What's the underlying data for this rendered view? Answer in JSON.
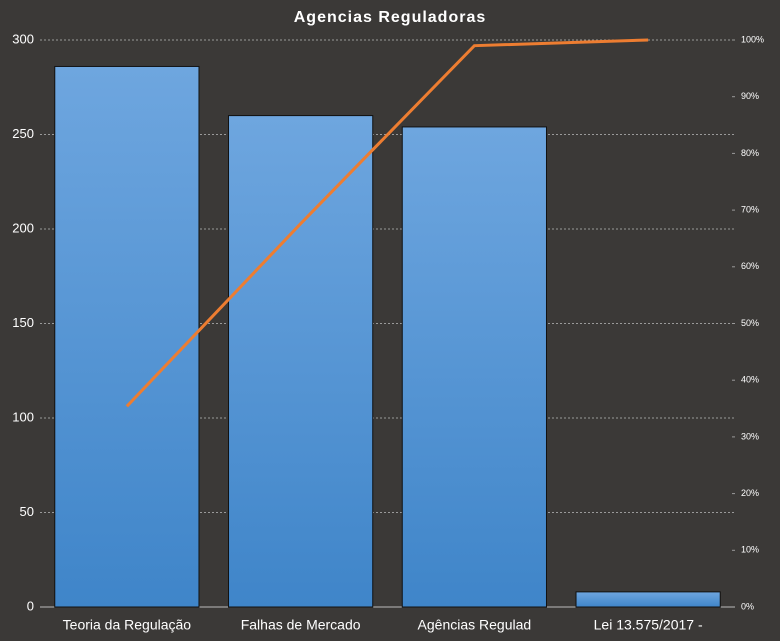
{
  "chart_data": {
    "type": "pareto",
    "title": "Agencias Reguladoras",
    "categories": [
      "Teoria da Regulação",
      "Falhas de Mercado",
      "Agências Regulad",
      "Lei 13.575/2017 -"
    ],
    "series": [
      {
        "type": "bar",
        "color": "#5b9bd5",
        "values": [
          286,
          260,
          254,
          8
        ]
      },
      {
        "type": "line",
        "axis": "y2",
        "color": "#ed7d31",
        "values": [
          35.4,
          67.6,
          99.0,
          100
        ]
      }
    ],
    "ylim": [
      0,
      300
    ],
    "yticks": [
      0,
      50,
      100,
      150,
      200,
      250,
      300
    ],
    "y2lim": [
      0,
      100
    ],
    "y2ticks": [
      {
        "value": 0,
        "label": "0%"
      },
      {
        "value": 10,
        "label": "10%"
      },
      {
        "value": 20,
        "label": "20%"
      },
      {
        "value": 30,
        "label": "30%"
      },
      {
        "value": 40,
        "label": "40%"
      },
      {
        "value": 50,
        "label": "50%"
      },
      {
        "value": 60,
        "label": "60%"
      },
      {
        "value": 70,
        "label": "70%"
      },
      {
        "value": 80,
        "label": "80%"
      },
      {
        "value": 90,
        "label": "90%"
      },
      {
        "value": 100,
        "label": "100%"
      }
    ],
    "grid": true
  }
}
